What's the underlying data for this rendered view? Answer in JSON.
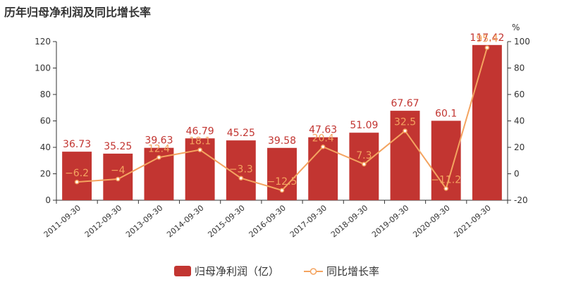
{
  "chart_data": {
    "type": "bar",
    "title": "历年归母净利润及同比增长率",
    "categories": [
      "2011-09-30",
      "2012-09-30",
      "2013-09-30",
      "2014-09-30",
      "2015-09-30",
      "2016-09-30",
      "2017-09-30",
      "2018-09-30",
      "2019-09-30",
      "2020-09-30",
      "2021-09-30"
    ],
    "series": [
      {
        "name": "归母净利润（亿）",
        "type": "bar",
        "axis": "left",
        "color": "#c23531",
        "values": [
          36.73,
          35.25,
          39.63,
          46.79,
          45.25,
          39.58,
          47.63,
          51.09,
          67.67,
          60.1,
          117.42
        ],
        "labels": [
          "36.73",
          "35.25",
          "39.63",
          "46.79",
          "45.25",
          "39.58",
          "47.63",
          "51.09",
          "67.67",
          "60.1",
          "117.42"
        ]
      },
      {
        "name": "同比增长率",
        "type": "line",
        "axis": "right",
        "color": "#f4a460",
        "values": [
          -6.2,
          -4,
          12.4,
          18.1,
          -3.3,
          -12.5,
          20.4,
          7.3,
          32.5,
          -11.2,
          95.4
        ],
        "labels": [
          "-6.2",
          "-4",
          "12.4",
          "18.1",
          "-3.3",
          "-12.5",
          "20.4",
          "7.3",
          "32.5",
          "-11.2",
          "95.4"
        ]
      }
    ],
    "y_left": {
      "min": 0,
      "max": 120,
      "ticks": [
        "0",
        "20",
        "40",
        "60",
        "80",
        "100",
        "120"
      ]
    },
    "y_right": {
      "min": -20,
      "max": 100,
      "ticks": [
        "-20",
        "0",
        "20",
        "40",
        "60",
        "80",
        "100"
      ],
      "unit": "%"
    },
    "grid": false,
    "legend": "bottom-center"
  }
}
